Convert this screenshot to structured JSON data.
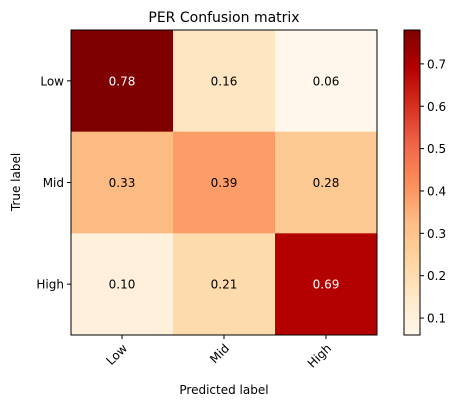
{
  "chart_data": {
    "type": "heatmap",
    "title": "PER Confusion matrix",
    "xlabel": "Predicted label",
    "ylabel": "True label",
    "x_categories": [
      "Low",
      "Mid",
      "High"
    ],
    "y_categories": [
      "Low",
      "Mid",
      "High"
    ],
    "values": [
      [
        0.78,
        0.16,
        0.06
      ],
      [
        0.33,
        0.39,
        0.28
      ],
      [
        0.1,
        0.21,
        0.69
      ]
    ],
    "cell_labels": [
      [
        "0.78",
        "0.16",
        "0.06"
      ],
      [
        "0.33",
        "0.39",
        "0.28"
      ],
      [
        "0.10",
        "0.21",
        "0.69"
      ]
    ],
    "colorbar": {
      "min": 0.06,
      "max": 0.78,
      "ticks": [
        0.1,
        0.2,
        0.3,
        0.4,
        0.5,
        0.6,
        0.7
      ],
      "tick_labels": [
        "0.1",
        "0.2",
        "0.3",
        "0.4",
        "0.5",
        "0.6",
        "0.7"
      ]
    },
    "colormap": "OrRd",
    "grid": false
  }
}
